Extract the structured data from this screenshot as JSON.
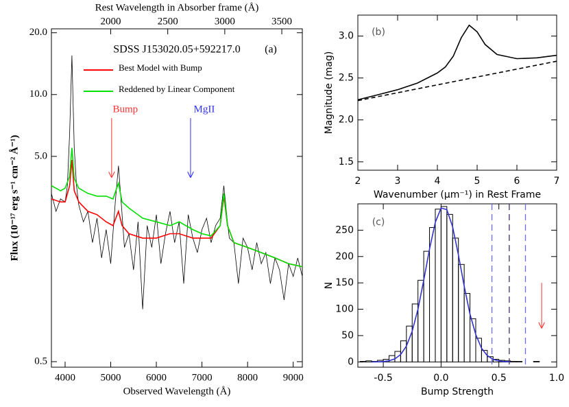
{
  "chart_data": [
    {
      "type": "line",
      "x2label": "Rest Wavelength in Absorber frame (Å)",
      "xlabel": "Observed Wavelength (Å)",
      "ylabel": "Flux (10⁻¹⁷ erg s⁻¹ cm⁻² Å⁻¹)",
      "xlim": [
        3700,
        9200
      ],
      "xticks": [
        4000,
        5000,
        6000,
        7000,
        8000,
        9000
      ],
      "x2lim": [
        1480,
        3680
      ],
      "x2ticks": [
        2000,
        2500,
        3000,
        3500
      ],
      "ylim": [
        0.47,
        20.9
      ],
      "log_y": true,
      "yticks": [
        0.5,
        {
          "value": 5,
          "label": "5.0"
        },
        {
          "value": 10,
          "label": "10.0"
        },
        {
          "value": 20,
          "label": "20.0"
        }
      ],
      "annotations": [
        {
          "text": "SDSS J153020.05+592217.0"
        },
        {
          "text": "(a)"
        },
        {
          "text": "Bump",
          "x": 5020,
          "color": "#ff3030"
        },
        {
          "text": "MgII",
          "x": 6750,
          "color": "#3030ff"
        }
      ],
      "series": [
        {
          "color": "#000000",
          "x": [
            3700,
            3800,
            3900,
            4000,
            4050,
            4100,
            4150,
            4200,
            4250,
            4300,
            4400,
            4500,
            4600,
            4700,
            4800,
            4900,
            5000,
            5100,
            5170,
            5250,
            5300,
            5400,
            5500,
            5600,
            5700,
            5800,
            5900,
            6000,
            6100,
            6200,
            6300,
            6400,
            6500,
            6600,
            6700,
            6800,
            6900,
            7000,
            7100,
            7200,
            7300,
            7400,
            7480,
            7550,
            7600,
            7700,
            7800,
            7900,
            8000,
            8100,
            8200,
            8300,
            8400,
            8500,
            8600,
            8700,
            8800,
            8900,
            9000,
            9100,
            9200
          ],
          "values": [
            3.3,
            2.7,
            3.1,
            3.0,
            3.6,
            6.5,
            15.5,
            5.5,
            3.6,
            2.9,
            2.4,
            2.7,
            1.9,
            2.5,
            1.6,
            2.2,
            1.5,
            3.0,
            4.5,
            2.6,
            1.8,
            2.1,
            1.4,
            2.4,
            0.9,
            2.3,
            1.8,
            2.6,
            1.5,
            2.1,
            2.7,
            1.9,
            2.4,
            1.2,
            2.6,
            2.0,
            1.7,
            2.2,
            2.5,
            1.9,
            2.3,
            2.5,
            3.6,
            2.5,
            2.0,
            1.9,
            1.2,
            2.0,
            1.8,
            1.4,
            1.9,
            1.5,
            1.7,
            1.2,
            1.6,
            1.4,
            1.0,
            1.5,
            1.3,
            1.6,
            1.3
          ]
        },
        {
          "name": "Best Model with Bump",
          "color": "#ff0000",
          "x": [
            3700,
            3900,
            4000,
            4100,
            4150,
            4200,
            4300,
            4500,
            4700,
            4900,
            5050,
            5170,
            5250,
            5400,
            5700,
            6000,
            6300,
            6500,
            6800,
            7000,
            7200,
            7400,
            7480,
            7560,
            7700,
            8000,
            8300,
            8600,
            8900,
            9200
          ],
          "values": [
            3.1,
            3.0,
            3.0,
            3.6,
            4.8,
            3.4,
            3.0,
            2.7,
            2.6,
            2.4,
            2.3,
            2.7,
            2.3,
            2.1,
            2.0,
            2.0,
            2.1,
            2.1,
            2.0,
            2.0,
            2.0,
            2.3,
            3.2,
            2.3,
            1.9,
            1.8,
            1.7,
            1.6,
            1.5,
            1.45
          ]
        },
        {
          "name": "Reddened by Linear Component",
          "color": "#00e000",
          "x": [
            3700,
            3900,
            4000,
            4100,
            4150,
            4200,
            4300,
            4500,
            4700,
            4900,
            5050,
            5170,
            5250,
            5400,
            5700,
            6000,
            6300,
            6500,
            6800,
            7000,
            7200,
            7400,
            7480,
            7560,
            7700,
            8000,
            8300,
            8600,
            8900,
            9200
          ],
          "values": [
            3.6,
            3.4,
            3.5,
            4.0,
            5.5,
            3.9,
            3.5,
            3.3,
            3.2,
            3.2,
            3.1,
            3.7,
            3.0,
            2.8,
            2.5,
            2.4,
            2.3,
            2.4,
            2.2,
            2.1,
            2.05,
            2.3,
            3.3,
            2.3,
            1.9,
            1.8,
            1.7,
            1.6,
            1.5,
            1.45
          ]
        }
      ]
    },
    {
      "type": "line",
      "xlabel": "Wavenumber (μm⁻¹) in Rest Frame",
      "ylabel": "Magnitude (mag)",
      "xlim": [
        2,
        7
      ],
      "xticks": [
        2,
        3,
        4,
        5,
        6,
        7
      ],
      "ylim": [
        1.4,
        3.25
      ],
      "yticks": [
        {
          "value": 1.5,
          "label": "1.5"
        },
        {
          "value": 2,
          "label": "2.0"
        },
        {
          "value": 2.5,
          "label": "2.5"
        },
        {
          "value": 3,
          "label": "3.0"
        }
      ],
      "annotations": [
        {
          "text": "(b)"
        }
      ],
      "series": [
        {
          "color": "#000000",
          "x": [
            2.0,
            2.5,
            3.0,
            3.5,
            4.0,
            4.2,
            4.4,
            4.6,
            4.8,
            5.0,
            5.2,
            5.5,
            6.0,
            6.5,
            7.0
          ],
          "values": [
            2.24,
            2.3,
            2.36,
            2.44,
            2.56,
            2.63,
            2.76,
            2.98,
            3.13,
            3.05,
            2.9,
            2.78,
            2.73,
            2.74,
            2.77
          ]
        },
        {
          "color": "#000000",
          "dash": true,
          "x": [
            2,
            7
          ],
          "values": [
            2.23,
            2.7
          ]
        }
      ]
    },
    {
      "type": "histogram",
      "xlabel": "Bump Strength",
      "ylabel": "N",
      "xlim": [
        -0.72,
        1.0
      ],
      "xticks": [
        -0.5,
        {
          "value": 0,
          "label": "0.0"
        },
        0.5,
        {
          "value": 1,
          "label": "1.0"
        }
      ],
      "ylim": [
        -10,
        300
      ],
      "yticks": [
        0,
        50,
        100,
        150,
        200,
        250
      ],
      "annotations": [
        {
          "text": "(c)"
        }
      ],
      "bins": [
        -0.7,
        -0.65,
        -0.6,
        -0.55,
        -0.5,
        -0.45,
        -0.4,
        -0.35,
        -0.3,
        -0.25,
        -0.2,
        -0.15,
        -0.1,
        -0.05,
        0,
        0.05,
        0.1,
        0.15,
        0.2,
        0.25,
        0.3,
        0.35,
        0.4,
        0.45,
        0.5,
        0.55,
        0.6,
        0.65,
        0.7,
        0.75,
        0.8,
        0.85,
        0.9
      ],
      "counts": [
        1,
        2,
        1,
        3,
        5,
        12,
        20,
        40,
        68,
        110,
        155,
        210,
        255,
        290,
        295,
        280,
        235,
        185,
        130,
        82,
        45,
        22,
        10,
        5,
        3,
        2,
        1,
        1,
        0,
        0,
        1,
        0
      ],
      "series": [
        {
          "color": "#3030d0",
          "x": [
            -0.6,
            -0.55,
            -0.5,
            -0.45,
            -0.4,
            -0.35,
            -0.3,
            -0.25,
            -0.2,
            -0.15,
            -0.1,
            -0.05,
            0,
            0.05,
            0.1,
            0.15,
            0.2,
            0.25,
            0.3,
            0.35,
            0.4,
            0.45,
            0.5,
            0.55,
            0.6
          ],
          "values": [
            0,
            0.2,
            0.7,
            2.2,
            5.8,
            14,
            30,
            58,
            100,
            155,
            214,
            265,
            292,
            289,
            256,
            203,
            144,
            91,
            52,
            26,
            12,
            4.8,
            1.8,
            0.6,
            0.2
          ]
        }
      ],
      "vlines": [
        {
          "x": 0.44,
          "color": "#6a6aff"
        },
        {
          "x": 0.59,
          "color": "#40306a"
        },
        {
          "x": 0.73,
          "color": "#6a6aff"
        }
      ],
      "arrow": {
        "x": 0.87,
        "y": [
          150,
          65
        ],
        "color": "#ff3030"
      }
    }
  ]
}
